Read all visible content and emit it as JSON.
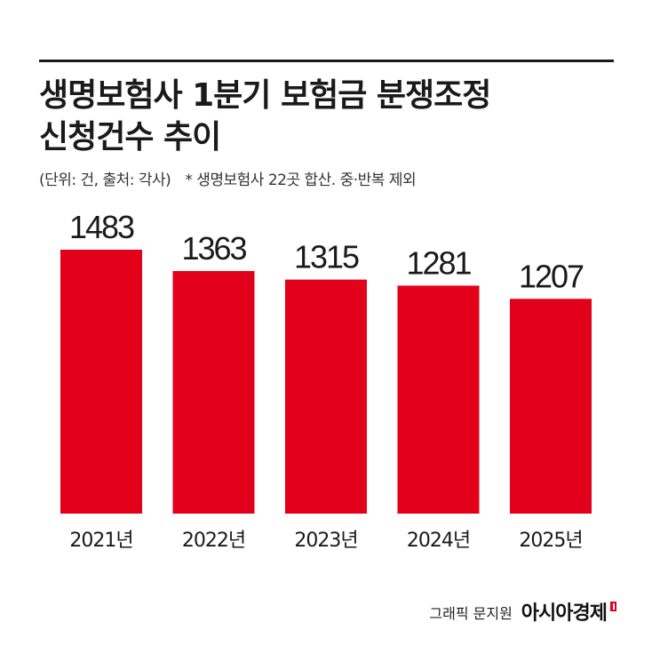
{
  "header": {
    "title_line1": "생명보험사 1분기 보험금 분쟁조정",
    "title_line2": "신청건수 추이",
    "unit_source": "(단위: 건, 출처: 각사)",
    "note": "* 생명보험사 22곳 합산. 중·반복 제외"
  },
  "chart_data": {
    "type": "bar",
    "categories": [
      "2021년",
      "2022년",
      "2023년",
      "2024년",
      "2025년"
    ],
    "values": [
      1483,
      1363,
      1315,
      1281,
      1207
    ],
    "title": "생명보험사 1분기 보험금 분쟁조정 신청건수 추이",
    "xlabel": "",
    "ylabel": "",
    "ylim": [
      0,
      1483
    ],
    "bar_color": "#e2001a",
    "grid": false,
    "data_labels": true
  },
  "footer": {
    "credit": "그래픽 문지원",
    "brand": "아시아경제"
  }
}
